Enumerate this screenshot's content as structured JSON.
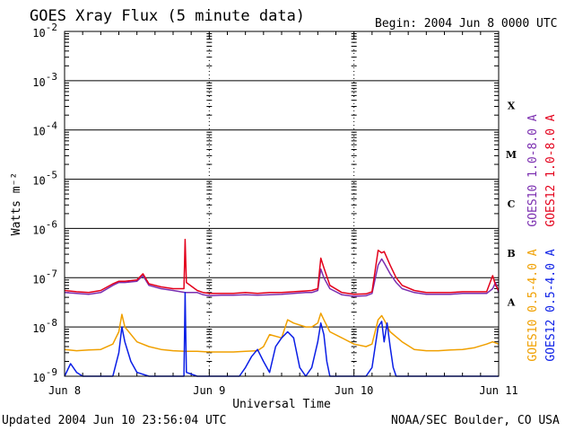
{
  "header": {
    "title": "GOES Xray Flux (5 minute data)",
    "begin": "Begin:  2004 Jun 8 0000 UTC"
  },
  "footer": {
    "updated": "Updated 2004 Jun 10 23:56:04 UTC",
    "credit": "NOAA/SEC Boulder, CO USA"
  },
  "colors": {
    "goes10_long": "#7b2fb0",
    "goes12_long": "#e3001b",
    "goes10_short": "#f0a000",
    "goes12_short": "#0a1ee6",
    "grid": "#000000"
  },
  "chart_data": {
    "type": "line",
    "title": "GOES Xray Flux (5 minute data)",
    "xlabel": "Universal Time",
    "ylabel": "Watts m⁻²",
    "y_scale": "log",
    "ylim": [
      1e-09,
      0.01
    ],
    "xlim": [
      0,
      72
    ],
    "x_unit": "hours since 2004 Jun 8 0000 UTC",
    "x_ticks": [
      {
        "value": 0,
        "label": "Jun 8"
      },
      {
        "value": 24,
        "label": "Jun 9"
      },
      {
        "value": 48,
        "label": "Jun 10"
      },
      {
        "value": 72,
        "label": "Jun 11"
      }
    ],
    "y_ticks": [
      {
        "exp": -2,
        "label": "10",
        "sup": "-2"
      },
      {
        "exp": -3,
        "label": "10",
        "sup": "-3"
      },
      {
        "exp": -4,
        "label": "10",
        "sup": "-4"
      },
      {
        "exp": -5,
        "label": "10",
        "sup": "-5"
      },
      {
        "exp": -6,
        "label": "10",
        "sup": "-6"
      },
      {
        "exp": -7,
        "label": "10",
        "sup": "-7"
      },
      {
        "exp": -8,
        "label": "10",
        "sup": "-8"
      },
      {
        "exp": -9,
        "label": "10",
        "sup": "-9"
      }
    ],
    "flare_classes": [
      {
        "label": "X",
        "exp": -3.5
      },
      {
        "label": "M",
        "exp": -4.5
      },
      {
        "label": "C",
        "exp": -5.5
      },
      {
        "label": "B",
        "exp": -6.5
      },
      {
        "label": "A",
        "exp": -7.5
      }
    ],
    "grid": true,
    "legend_position": "right, vertical",
    "series": [
      {
        "name": "GOES10 1.0-8.0 A",
        "color_key": "goes10_long",
        "x": [
          0,
          2,
          4,
          6,
          8,
          9,
          10,
          12,
          13,
          14,
          16,
          18,
          20,
          22,
          23,
          24,
          26,
          28,
          30,
          32,
          34,
          36,
          38,
          40,
          41,
          42,
          42.5,
          43,
          44,
          46,
          48,
          50,
          51,
          52,
          52.6,
          53,
          54,
          55,
          56,
          58,
          60,
          62,
          64,
          66,
          68,
          70,
          71,
          71.5,
          72
        ],
        "y": [
          5e-08,
          4.8e-08,
          4.6e-08,
          5e-08,
          7e-08,
          8e-08,
          8e-08,
          8.5e-08,
          1.1e-07,
          7e-08,
          6e-08,
          5.5e-08,
          5e-08,
          5e-08,
          4.5e-08,
          4.3e-08,
          4.4e-08,
          4.4e-08,
          4.5e-08,
          4.4e-08,
          4.5e-08,
          4.6e-08,
          4.8e-08,
          5e-08,
          5e-08,
          5.5e-08,
          1.5e-07,
          1e-07,
          6e-08,
          4.5e-08,
          4.2e-08,
          4.3e-08,
          4.8e-08,
          1.8e-07,
          2.4e-07,
          2e-07,
          1.2e-07,
          8e-08,
          6e-08,
          5e-08,
          4.6e-08,
          4.6e-08,
          4.6e-08,
          4.8e-08,
          4.8e-08,
          4.8e-08,
          6e-08,
          8e-08,
          5e-08
        ]
      },
      {
        "name": "GOES12 1.0-8.0 A",
        "color_key": "goes12_long",
        "x": [
          0,
          2,
          4,
          6,
          8,
          9,
          10,
          12,
          13,
          14,
          16,
          18,
          19.8,
          20,
          20.2,
          22,
          23,
          24,
          26,
          28,
          30,
          32,
          34,
          36,
          38,
          40,
          41,
          42,
          42.5,
          43,
          44,
          46,
          48,
          50,
          51,
          52,
          52.6,
          53,
          54,
          55,
          56,
          58,
          60,
          62,
          64,
          66,
          68,
          70,
          71,
          71.5,
          72
        ],
        "y": [
          5.5e-08,
          5.2e-08,
          5e-08,
          5.5e-08,
          7.5e-08,
          8.5e-08,
          8.5e-08,
          9e-08,
          1.2e-07,
          7.5e-08,
          6.5e-08,
          6e-08,
          6e-08,
          6e-07,
          8e-08,
          5.5e-08,
          5e-08,
          4.8e-08,
          4.8e-08,
          4.8e-08,
          5e-08,
          4.8e-08,
          5e-08,
          5e-08,
          5.2e-08,
          5.4e-08,
          5.5e-08,
          6e-08,
          2.5e-07,
          1.6e-07,
          7e-08,
          5e-08,
          4.6e-08,
          4.7e-08,
          5.2e-08,
          3.6e-07,
          3.2e-07,
          3.4e-07,
          1.8e-07,
          1e-07,
          7e-08,
          5.5e-08,
          5e-08,
          5e-08,
          5e-08,
          5.2e-08,
          5.2e-08,
          5.2e-08,
          1.1e-07,
          7e-08,
          5.5e-08
        ]
      },
      {
        "name": "GOES10 0.5-4.0 A",
        "color_key": "goes10_short",
        "x": [
          0,
          2,
          4,
          6,
          8,
          9,
          9.5,
          10,
          12,
          14,
          16,
          18,
          20,
          22,
          24,
          26,
          28,
          30,
          32,
          33,
          34,
          36,
          37,
          38,
          40,
          41,
          42,
          42.5,
          43,
          44,
          46,
          48,
          50,
          51,
          52,
          52.6,
          53,
          54,
          56,
          58,
          60,
          62,
          64,
          66,
          68,
          70,
          71,
          72
        ],
        "y": [
          3.5e-09,
          3.3e-09,
          3.4e-09,
          3.5e-09,
          4.5e-09,
          8e-09,
          1.8e-08,
          1e-08,
          5e-09,
          4e-09,
          3.5e-09,
          3.3e-09,
          3.2e-09,
          3.2e-09,
          3.1e-09,
          3.1e-09,
          3.1e-09,
          3.2e-09,
          3.3e-09,
          4e-09,
          7e-09,
          6e-09,
          1.4e-08,
          1.2e-08,
          1e-08,
          1e-08,
          1.2e-08,
          1.9e-08,
          1.4e-08,
          8e-09,
          6e-09,
          4.5e-09,
          4e-09,
          4.5e-09,
          1.4e-08,
          1.7e-08,
          1.4e-08,
          8e-09,
          5e-09,
          3.5e-09,
          3.3e-09,
          3.3e-09,
          3.4e-09,
          3.5e-09,
          3.8e-09,
          4.5e-09,
          5e-09,
          4.5e-09
        ]
      },
      {
        "name": "GOES12 0.5-4.0 A",
        "color_key": "goes12_short",
        "x": [
          0,
          1,
          2,
          3,
          4,
          6,
          8,
          9,
          9.5,
          10,
          11,
          12,
          14,
          16,
          18,
          19.8,
          20,
          20.2,
          22,
          24,
          26,
          28,
          29,
          30,
          31,
          32,
          33,
          34,
          35,
          36,
          37,
          38,
          39,
          40,
          41,
          42,
          42.5,
          43,
          43.5,
          44,
          46,
          48,
          50,
          51,
          52,
          52.6,
          53,
          53.5,
          54,
          54.5,
          55,
          56,
          58,
          60,
          62,
          64,
          66,
          68,
          70,
          71,
          72
        ],
        "y": [
          1e-09,
          1.8e-09,
          1.2e-09,
          1e-09,
          1e-09,
          1e-09,
          1e-09,
          3e-09,
          1e-08,
          5e-09,
          2e-09,
          1.2e-09,
          1e-09,
          1e-09,
          1e-09,
          1e-09,
          5e-08,
          1.2e-09,
          1e-09,
          1e-09,
          1e-09,
          1e-09,
          1e-09,
          1.5e-09,
          2.5e-09,
          3.5e-09,
          2e-09,
          1.2e-09,
          4e-09,
          6e-09,
          8e-09,
          6e-09,
          1.5e-09,
          1e-09,
          1.5e-09,
          5e-09,
          1.2e-08,
          7e-09,
          2e-09,
          1e-09,
          1e-09,
          1e-09,
          1e-09,
          1.5e-09,
          1e-08,
          1.3e-08,
          5e-09,
          1.2e-08,
          4e-09,
          1.5e-09,
          1e-09,
          1e-09,
          1e-09,
          1e-09,
          1e-09,
          1e-09,
          1e-09,
          1e-09,
          1e-09,
          1e-09,
          1e-09
        ]
      }
    ]
  }
}
